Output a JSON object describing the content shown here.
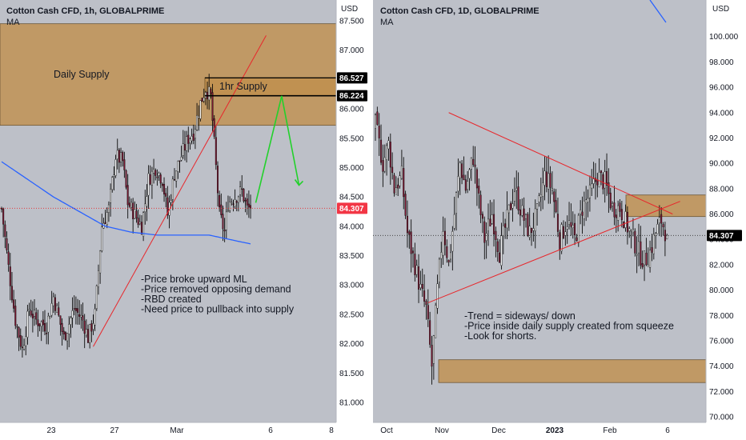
{
  "charts": [
    {
      "title": "Cotton Cash CFD, 1h, GLOBALPRIME",
      "indicator": "MA",
      "currency": "USD",
      "price_ticks": [
        "87.500",
        "87.000",
        "86.500",
        "86.000",
        "85.500",
        "85.000",
        "84.500",
        "84.000",
        "83.500",
        "83.000",
        "82.500",
        "82.000",
        "81.500",
        "81.000"
      ],
      "time_ticks": [
        "23",
        "27",
        "Mar",
        "6",
        "8"
      ],
      "zones": [
        {
          "label": "Daily Supply",
          "top": 87.45,
          "bottom": 85.72
        },
        {
          "label": "1hr Supply",
          "top": 86.53,
          "bottom": 86.22
        }
      ],
      "price_labels": [
        {
          "value": "86.527",
          "kind": "level"
        },
        {
          "value": "86.224",
          "kind": "level"
        },
        {
          "value": "84.307",
          "kind": "last"
        }
      ],
      "annotation_lines": [
        "-Price broke upward ML",
        "-Price removed opposing demand",
        "-RBD created",
        "-Need price to pullback into supply"
      ]
    },
    {
      "title": "Cotton Cash CFD, 1D, GLOBALPRIME",
      "indicator": "MA",
      "currency": "USD",
      "price_ticks": [
        "100.000",
        "98.000",
        "96.000",
        "94.000",
        "92.000",
        "90.000",
        "88.000",
        "86.000",
        "84.000",
        "82.000",
        "80.000",
        "78.000",
        "76.000",
        "74.000",
        "72.000",
        "70.000"
      ],
      "time_ticks": [
        "Oct",
        "Nov",
        "Dec",
        "2023",
        "Feb",
        "6"
      ],
      "zones": [
        {
          "label": "",
          "top": 87.5,
          "bottom": 85.8
        },
        {
          "label": "",
          "top": 74.5,
          "bottom": 72.7
        }
      ],
      "price_labels": [
        {
          "value": "84.307",
          "kind": "last-dark"
        }
      ],
      "annotation_lines": [
        "-Trend = sideways/ down",
        "-Price inside daily supply created from squeeze",
        "-Look for shorts."
      ]
    }
  ],
  "chart_data": [
    {
      "type": "candlestick",
      "title": "Cotton Cash CFD, 1h, GLOBALPRIME",
      "ylim": [
        80.7,
        87.75
      ],
      "xlabel": "",
      "ylabel": "",
      "x_ticks": [
        "23",
        "27",
        "Mar",
        "6",
        "8"
      ],
      "last_price": 84.307,
      "keypoints": [
        {
          "i": 0,
          "v": 84.3
        },
        {
          "i": 4,
          "v": 83.3
        },
        {
          "i": 8,
          "v": 82.4
        },
        {
          "i": 12,
          "v": 81.9
        },
        {
          "i": 16,
          "v": 82.6
        },
        {
          "i": 20,
          "v": 82.4
        },
        {
          "i": 26,
          "v": 82.3
        },
        {
          "i": 30,
          "v": 82.8
        },
        {
          "i": 36,
          "v": 82.1
        },
        {
          "i": 42,
          "v": 82.6
        },
        {
          "i": 47,
          "v": 82.4
        },
        {
          "i": 50,
          "v": 82.1
        },
        {
          "i": 54,
          "v": 82.5
        },
        {
          "i": 58,
          "v": 84.0
        },
        {
          "i": 62,
          "v": 84.3
        },
        {
          "i": 66,
          "v": 85.2
        },
        {
          "i": 70,
          "v": 85.1
        },
        {
          "i": 73,
          "v": 84.4
        },
        {
          "i": 77,
          "v": 84.2
        },
        {
          "i": 81,
          "v": 84.0
        },
        {
          "i": 85,
          "v": 84.8
        },
        {
          "i": 89,
          "v": 85.0
        },
        {
          "i": 93,
          "v": 84.8
        },
        {
          "i": 96,
          "v": 84.2
        },
        {
          "i": 100,
          "v": 84.9
        },
        {
          "i": 104,
          "v": 85.2
        },
        {
          "i": 108,
          "v": 85.5
        },
        {
          "i": 111,
          "v": 85.6
        },
        {
          "i": 115,
          "v": 86.1
        },
        {
          "i": 118,
          "v": 86.35
        },
        {
          "i": 121,
          "v": 86.2
        },
        {
          "i": 123,
          "v": 85.4
        },
        {
          "i": 126,
          "v": 84.2
        },
        {
          "i": 129,
          "v": 83.9
        },
        {
          "i": 131,
          "v": 84.4
        },
        {
          "i": 135,
          "v": 84.5
        },
        {
          "i": 139,
          "v": 84.6
        },
        {
          "i": 142,
          "v": 84.3
        },
        {
          "i": 144,
          "v": 84.307
        }
      ],
      "ma": [
        {
          "i": 0,
          "v": 85.1
        },
        {
          "i": 15,
          "v": 84.8
        },
        {
          "i": 30,
          "v": 84.5
        },
        {
          "i": 45,
          "v": 84.25
        },
        {
          "i": 60,
          "v": 84.0
        },
        {
          "i": 75,
          "v": 83.9
        },
        {
          "i": 90,
          "v": 83.85
        },
        {
          "i": 105,
          "v": 83.85
        },
        {
          "i": 120,
          "v": 83.85
        },
        {
          "i": 144,
          "v": 83.7
        }
      ],
      "trendline": [
        {
          "i": 53,
          "v": 81.95
        },
        {
          "i": 153,
          "v": 87.25
        }
      ],
      "arrow_path": [
        {
          "i": 147,
          "v": 84.4
        },
        {
          "i": 162,
          "v": 86.22
        },
        {
          "i": 172,
          "v": 84.7
        }
      ]
    },
    {
      "type": "candlestick",
      "title": "Cotton Cash CFD, 1D, GLOBALPRIME",
      "ylim": [
        69.5,
        102.5
      ],
      "xlabel": "",
      "ylabel": "",
      "x_ticks": [
        "Oct",
        "Nov",
        "Dec",
        "2023",
        "Feb",
        "6"
      ],
      "last_price": 84.307,
      "keypoints": [
        {
          "i": 0,
          "v": 93.0
        },
        {
          "i": 4,
          "v": 90.0
        },
        {
          "i": 7,
          "v": 91.5
        },
        {
          "i": 10,
          "v": 88.0
        },
        {
          "i": 14,
          "v": 89.0
        },
        {
          "i": 17,
          "v": 84.5
        },
        {
          "i": 21,
          "v": 82.0
        },
        {
          "i": 24,
          "v": 80.0
        },
        {
          "i": 27,
          "v": 78.5
        },
        {
          "i": 30,
          "v": 74.0
        },
        {
          "i": 33,
          "v": 80.0
        },
        {
          "i": 36,
          "v": 85.0
        },
        {
          "i": 39,
          "v": 82.0
        },
        {
          "i": 42,
          "v": 86.0
        },
        {
          "i": 45,
          "v": 90.0
        },
        {
          "i": 48,
          "v": 88.0
        },
        {
          "i": 52,
          "v": 90.5
        },
        {
          "i": 55,
          "v": 87.0
        },
        {
          "i": 58,
          "v": 84.0
        },
        {
          "i": 62,
          "v": 86.0
        },
        {
          "i": 66,
          "v": 83.0
        },
        {
          "i": 70,
          "v": 85.5
        },
        {
          "i": 74,
          "v": 88.0
        },
        {
          "i": 78,
          "v": 86.0
        },
        {
          "i": 82,
          "v": 84.5
        },
        {
          "i": 86,
          "v": 86.0
        },
        {
          "i": 90,
          "v": 89.0
        },
        {
          "i": 94,
          "v": 88.0
        },
        {
          "i": 98,
          "v": 84.0
        },
        {
          "i": 102,
          "v": 85.5
        },
        {
          "i": 106,
          "v": 84.0
        },
        {
          "i": 110,
          "v": 86.5
        },
        {
          "i": 114,
          "v": 87.5
        },
        {
          "i": 118,
          "v": 89.0
        },
        {
          "i": 122,
          "v": 88.5
        },
        {
          "i": 126,
          "v": 86.5
        },
        {
          "i": 130,
          "v": 86.5
        },
        {
          "i": 134,
          "v": 85.0
        },
        {
          "i": 137,
          "v": 84.0
        },
        {
          "i": 140,
          "v": 83.0
        },
        {
          "i": 143,
          "v": 82.3
        },
        {
          "i": 146,
          "v": 83.0
        },
        {
          "i": 149,
          "v": 84.5
        },
        {
          "i": 152,
          "v": 85.5
        },
        {
          "i": 155,
          "v": 84.307
        }
      ],
      "trendlines": [
        {
          "from": {
            "i": 39,
            "v": 94.0
          },
          "to": {
            "i": 158,
            "v": 86.0
          }
        },
        {
          "from": {
            "i": 28,
            "v": 79.0
          },
          "to": {
            "i": 162,
            "v": 87.0
          }
        }
      ]
    }
  ]
}
